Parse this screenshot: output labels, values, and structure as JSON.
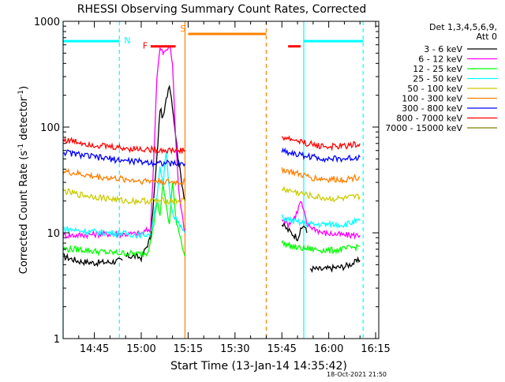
{
  "chart_data": {
    "type": "line",
    "title": "RHESSI Observing Summary Count Rates, Corrected",
    "xlabel": "Start Time (13-Jan-14 14:35:42)",
    "ylabel_main": "Corrected Count Rate (s",
    "ylabel_sup1": "-1",
    "ylabel_mid": " detector",
    "ylabel_sup2": "-1",
    "ylabel_end": ")",
    "yscale": "log",
    "xlim": [
      "14:35",
      "16:16"
    ],
    "ylim": [
      1,
      1000
    ],
    "x_ticks": [
      "14:45",
      "15:00",
      "15:15",
      "15:30",
      "15:45",
      "16:00",
      "16:15"
    ],
    "y_ticks": [
      "1",
      "10",
      "100",
      "1000"
    ],
    "legend": {
      "title_line1": "Det 1,3,4,5,6,9,",
      "title_line2": "Att 0",
      "position": "right"
    },
    "series": [
      {
        "name": "3 - 6 keV",
        "color": "#000000",
        "segments": [
          {
            "x": [
              "14:35",
              "14:40",
              "14:45",
              "14:50",
              "14:54"
            ],
            "y": [
              6,
              5.4,
              5.2,
              5.3,
              5.5
            ]
          },
          {
            "x": [
              "14:55",
              "14:58",
              "15:00",
              "15:03",
              "15:05",
              "15:06",
              "15:07",
              "15:08",
              "15:09",
              "15:10",
              "15:12",
              "15:13",
              "15:14"
            ],
            "y": [
              6,
              6,
              5.8,
              9,
              50,
              150,
              120,
              180,
              260,
              160,
              45,
              30,
              20
            ]
          },
          {
            "x": [
              "15:45",
              "15:48",
              "15:50",
              "15:52",
              "15:53"
            ],
            "y": [
              12,
              10,
              9,
              12,
              10
            ]
          },
          {
            "x": [
              "15:54",
              "15:58",
              "16:00",
              "16:05",
              "16:10"
            ],
            "y": [
              4.6,
              4.5,
              4.6,
              4.8,
              5.5
            ]
          }
        ]
      },
      {
        "name": "6 - 12 keV",
        "color": "#ff00ff",
        "segments": [
          {
            "x": [
              "14:35",
              "14:40",
              "14:45",
              "14:50",
              "14:55",
              "15:00",
              "15:03"
            ],
            "y": [
              9.5,
              9.5,
              9.7,
              9.8,
              9.7,
              9.8,
              11
            ]
          },
          {
            "x": [
              "15:03",
              "15:04",
              "15:05",
              "15:06",
              "15:07",
              "15:08",
              "15:09",
              "15:10",
              "15:11",
              "15:12",
              "15:13",
              "15:14"
            ],
            "y": [
              11,
              50,
              300,
              550,
              500,
              520,
              600,
              400,
              80,
              25,
              15,
              10
            ]
          },
          {
            "x": [
              "15:45",
              "15:47",
              "15:49",
              "15:50",
              "15:51",
              "15:52",
              "15:53",
              "15:58",
              "16:05",
              "16:10"
            ],
            "y": [
              14,
              12,
              14,
              16,
              20,
              16,
              12,
              10,
              9.5,
              9.5
            ]
          }
        ]
      },
      {
        "name": "12 - 25 keV",
        "color": "#00ff00",
        "segments": [
          {
            "x": [
              "14:35",
              "14:40",
              "14:45",
              "14:50",
              "14:55",
              "15:00",
              "15:02"
            ],
            "y": [
              7,
              7,
              6.7,
              6.5,
              6.4,
              6.3,
              6.5
            ]
          },
          {
            "x": [
              "15:02",
              "15:04",
              "15:05",
              "15:06",
              "15:07",
              "15:08",
              "15:09",
              "15:10",
              "15:11",
              "15:13",
              "15:14"
            ],
            "y": [
              6.5,
              12,
              20,
              15,
              28,
              18,
              12,
              30,
              14,
              8,
              6
            ]
          },
          {
            "x": [
              "15:45",
              "15:50",
              "15:55",
              "16:00",
              "16:05",
              "16:10"
            ],
            "y": [
              8,
              7.2,
              7,
              6.8,
              7,
              7.5
            ]
          }
        ]
      },
      {
        "name": "25 - 50 keV",
        "color": "#00ffff",
        "segments": [
          {
            "x": [
              "14:35",
              "14:40",
              "14:45",
              "14:50",
              "14:55",
              "15:00",
              "15:03"
            ],
            "y": [
              11,
              10.5,
              10.2,
              10,
              9.8,
              9.5,
              9.8
            ]
          },
          {
            "x": [
              "15:03",
              "15:05",
              "15:06",
              "15:07",
              "15:08",
              "15:09",
              "15:10",
              "15:12",
              "15:14"
            ],
            "y": [
              9.8,
              22,
              40,
              28,
              60,
              25,
              16,
              12,
              10
            ]
          },
          {
            "x": [
              "15:45",
              "15:50",
              "15:55",
              "16:00",
              "16:05",
              "16:10"
            ],
            "y": [
              14,
              12.5,
              12,
              12,
              12,
              13
            ]
          }
        ]
      },
      {
        "name": "50 - 100 keV",
        "color": "#cccc00",
        "segments": [
          {
            "x": [
              "14:35",
              "14:40",
              "14:45",
              "14:50",
              "14:55",
              "15:00",
              "15:05",
              "15:10",
              "15:14"
            ],
            "y": [
              25,
              23,
              22,
              21,
              20,
              20,
              20,
              20,
              20
            ]
          },
          {
            "x": [
              "15:45",
              "15:50",
              "15:55",
              "16:00",
              "16:05",
              "16:10"
            ],
            "y": [
              26,
              24,
              22,
              21,
              21,
              22
            ]
          }
        ]
      },
      {
        "name": "100 - 300 keV",
        "color": "#ff7f00",
        "segments": [
          {
            "x": [
              "14:35",
              "14:40",
              "14:45",
              "14:50",
              "14:55",
              "15:00",
              "15:05",
              "15:10",
              "15:14"
            ],
            "y": [
              38,
              36,
              34,
              33,
              32,
              31,
              31,
              30,
              30
            ]
          },
          {
            "x": [
              "15:45",
              "15:50",
              "15:55",
              "16:00",
              "16:05",
              "16:10"
            ],
            "y": [
              40,
              36,
              33,
              32,
              32,
              34
            ]
          }
        ]
      },
      {
        "name": "300 - 800 keV",
        "color": "#0000ff",
        "segments": [
          {
            "x": [
              "14:35",
              "14:40",
              "14:45",
              "14:50",
              "14:55",
              "15:00",
              "15:05",
              "15:10",
              "15:14"
            ],
            "y": [
              58,
              55,
              52,
              50,
              48,
              47,
              46,
              45,
              45
            ]
          },
          {
            "x": [
              "15:45",
              "15:50",
              "15:55",
              "16:00",
              "16:05",
              "16:10"
            ],
            "y": [
              60,
              55,
              52,
              50,
              50,
              52
            ]
          }
        ]
      },
      {
        "name": "800 - 7000 keV",
        "color": "#ff0000",
        "segments": [
          {
            "x": [
              "14:35",
              "14:40",
              "14:45",
              "14:50",
              "14:55",
              "15:00",
              "15:05",
              "15:10",
              "15:14"
            ],
            "y": [
              76,
              72,
              68,
              65,
              63,
              62,
              61,
              60,
              60
            ]
          },
          {
            "x": [
              "15:45",
              "15:50",
              "15:55",
              "16:00",
              "16:05",
              "16:10"
            ],
            "y": [
              80,
              74,
              68,
              65,
              66,
              70
            ]
          }
        ]
      },
      {
        "name": "7000 - 15000 keV",
        "color": "#808000",
        "segments": []
      }
    ],
    "vertical_lines": [
      {
        "x": "14:35",
        "color": "#00ffff",
        "style": "solid"
      },
      {
        "x": "14:53",
        "color": "#00ffff",
        "style": "dashed"
      },
      {
        "x": "15:14",
        "color": "#ff7f00",
        "style": "solid"
      },
      {
        "x": "15:40",
        "color": "#ff7f00",
        "style": "dashed"
      },
      {
        "x": "15:52",
        "color": "#00ffff",
        "style": "solid"
      },
      {
        "x": "16:11",
        "color": "#00ffff",
        "style": "dashed"
      }
    ],
    "annotations": [
      {
        "label": "N",
        "color": "#00ffff",
        "kind": "bar",
        "x_start": "14:35",
        "x_end": "14:53",
        "y": 650
      },
      {
        "label": "F",
        "color": "#ff0000",
        "kind": "bar",
        "x_start": "15:03",
        "x_end": "15:11",
        "y": 580
      },
      {
        "label": "S",
        "color": "#ff7f00",
        "kind": "bar",
        "x_start": "15:15",
        "x_end": "15:40",
        "y": 760
      },
      {
        "label": "",
        "color": "#ff0000",
        "kind": "bar",
        "x_start": "15:47",
        "x_end": "15:51",
        "y": 580
      },
      {
        "label": "",
        "color": "#00ffff",
        "kind": "bar",
        "x_start": "15:52",
        "x_end": "16:11",
        "y": 650
      }
    ]
  },
  "footer": {
    "timestamp": "18-Oct-2021 21:50"
  }
}
